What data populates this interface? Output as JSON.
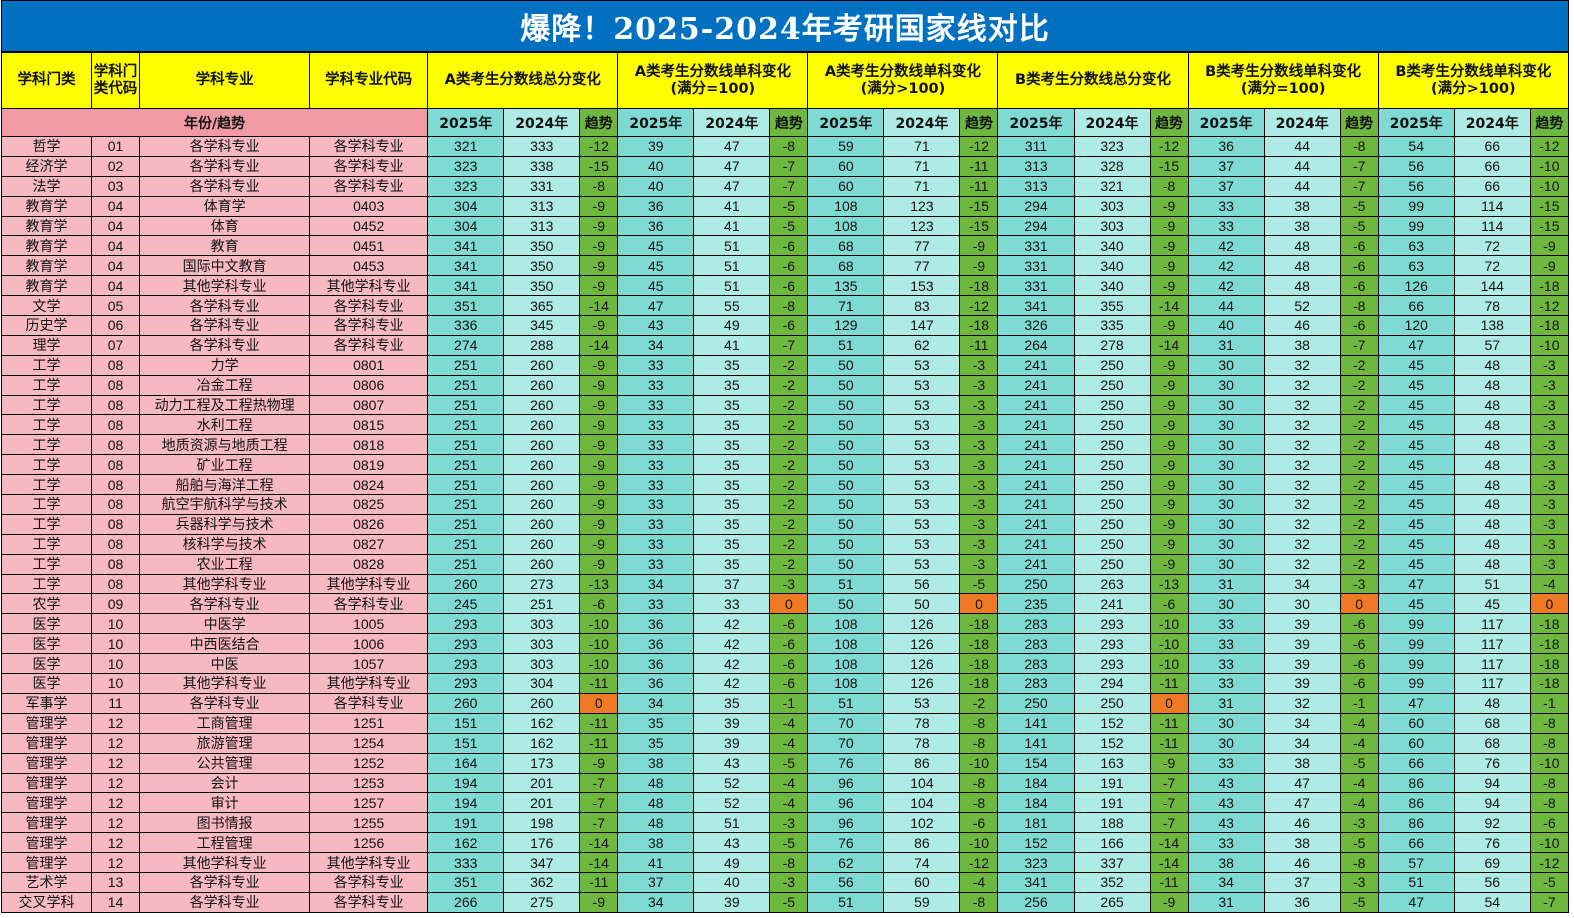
{
  "title": "爆降！2025-2024年考研国家线对比",
  "colors": {
    "title_bg": "#0070c0",
    "header_bg": "#ffff00",
    "label_bg": "#f7b9c1",
    "year2025_bg": "#7fdad3",
    "year2024_bg": "#aeebe5",
    "trend_bg": "#6fb83f",
    "zero_trend_bg": "#ef7a23"
  },
  "headers": {
    "category": "学科门类",
    "category_code": "学科门类代码",
    "major": "学科专业",
    "major_code": "学科专业代码",
    "groups": [
      {
        "line1": "A类考生分数线总分变化",
        "line2": ""
      },
      {
        "line1": "A类考生分数线单科变化",
        "line2": "(满分=100)"
      },
      {
        "line1": "A类考生分数线单科变化",
        "line2": "(满分>100)"
      },
      {
        "line1": "B类考生分数线总分变化",
        "line2": ""
      },
      {
        "line1": "B类考生分数线单科变化",
        "line2": "(满分=100)"
      },
      {
        "line1": "B类考生分数线单科变化",
        "line2": "(满分>100)"
      }
    ],
    "year_trend_label": "年份/趋势",
    "sub": [
      "2025年",
      "2024年",
      "趋势"
    ]
  },
  "rows": [
    [
      "哲学",
      "01",
      "各学科专业",
      "各学科专业",
      "321",
      "333",
      "-12",
      "39",
      "47",
      "-8",
      "59",
      "71",
      "-12",
      "311",
      "323",
      "-12",
      "36",
      "44",
      "-8",
      "54",
      "66",
      "-12"
    ],
    [
      "经济学",
      "02",
      "各学科专业",
      "各学科专业",
      "323",
      "338",
      "-15",
      "40",
      "47",
      "-7",
      "60",
      "71",
      "-11",
      "313",
      "328",
      "-15",
      "37",
      "44",
      "-7",
      "56",
      "66",
      "-10"
    ],
    [
      "法学",
      "03",
      "各学科专业",
      "各学科专业",
      "323",
      "331",
      "-8",
      "40",
      "47",
      "-7",
      "60",
      "71",
      "-11",
      "313",
      "321",
      "-8",
      "37",
      "44",
      "-7",
      "56",
      "66",
      "-10"
    ],
    [
      "教育学",
      "04",
      "体育学",
      "0403",
      "304",
      "313",
      "-9",
      "36",
      "41",
      "-5",
      "108",
      "123",
      "-15",
      "294",
      "303",
      "-9",
      "33",
      "38",
      "-5",
      "99",
      "114",
      "-15"
    ],
    [
      "教育学",
      "04",
      "体育",
      "0452",
      "304",
      "313",
      "-9",
      "36",
      "41",
      "-5",
      "108",
      "123",
      "-15",
      "294",
      "303",
      "-9",
      "33",
      "38",
      "-5",
      "99",
      "114",
      "-15"
    ],
    [
      "教育学",
      "04",
      "教育",
      "0451",
      "341",
      "350",
      "-9",
      "45",
      "51",
      "-6",
      "68",
      "77",
      "-9",
      "331",
      "340",
      "-9",
      "42",
      "48",
      "-6",
      "63",
      "72",
      "-9"
    ],
    [
      "教育学",
      "04",
      "国际中文教育",
      "0453",
      "341",
      "350",
      "-9",
      "45",
      "51",
      "-6",
      "68",
      "77",
      "-9",
      "331",
      "340",
      "-9",
      "42",
      "48",
      "-6",
      "63",
      "72",
      "-9"
    ],
    [
      "教育学",
      "04",
      "其他学科专业",
      "其他学科专业",
      "341",
      "350",
      "-9",
      "45",
      "51",
      "-6",
      "135",
      "153",
      "-18",
      "331",
      "340",
      "-9",
      "42",
      "48",
      "-6",
      "126",
      "144",
      "-18"
    ],
    [
      "文学",
      "05",
      "各学科专业",
      "各学科专业",
      "351",
      "365",
      "-14",
      "47",
      "55",
      "-8",
      "71",
      "83",
      "-12",
      "341",
      "355",
      "-14",
      "44",
      "52",
      "-8",
      "66",
      "78",
      "-12"
    ],
    [
      "历史学",
      "06",
      "各学科专业",
      "各学科专业",
      "336",
      "345",
      "-9",
      "43",
      "49",
      "-6",
      "129",
      "147",
      "-18",
      "326",
      "335",
      "-9",
      "40",
      "46",
      "-6",
      "120",
      "138",
      "-18"
    ],
    [
      "理学",
      "07",
      "各学科专业",
      "各学科专业",
      "274",
      "288",
      "-14",
      "34",
      "41",
      "-7",
      "51",
      "62",
      "-11",
      "264",
      "278",
      "-14",
      "31",
      "38",
      "-7",
      "47",
      "57",
      "-10"
    ],
    [
      "工学",
      "08",
      "力学",
      "0801",
      "251",
      "260",
      "-9",
      "33",
      "35",
      "-2",
      "50",
      "53",
      "-3",
      "241",
      "250",
      "-9",
      "30",
      "32",
      "-2",
      "45",
      "48",
      "-3"
    ],
    [
      "工学",
      "08",
      "冶金工程",
      "0806",
      "251",
      "260",
      "-9",
      "33",
      "35",
      "-2",
      "50",
      "53",
      "-3",
      "241",
      "250",
      "-9",
      "30",
      "32",
      "-2",
      "45",
      "48",
      "-3"
    ],
    [
      "工学",
      "08",
      "动力工程及工程热物理",
      "0807",
      "251",
      "260",
      "-9",
      "33",
      "35",
      "-2",
      "50",
      "53",
      "-3",
      "241",
      "250",
      "-9",
      "30",
      "32",
      "-2",
      "45",
      "48",
      "-3"
    ],
    [
      "工学",
      "08",
      "水利工程",
      "0815",
      "251",
      "260",
      "-9",
      "33",
      "35",
      "-2",
      "50",
      "53",
      "-3",
      "241",
      "250",
      "-9",
      "30",
      "32",
      "-2",
      "45",
      "48",
      "-3"
    ],
    [
      "工学",
      "08",
      "地质资源与地质工程",
      "0818",
      "251",
      "260",
      "-9",
      "33",
      "35",
      "-2",
      "50",
      "53",
      "-3",
      "241",
      "250",
      "-9",
      "30",
      "32",
      "-2",
      "45",
      "48",
      "-3"
    ],
    [
      "工学",
      "08",
      "矿业工程",
      "0819",
      "251",
      "260",
      "-9",
      "33",
      "35",
      "-2",
      "50",
      "53",
      "-3",
      "241",
      "250",
      "-9",
      "30",
      "32",
      "-2",
      "45",
      "48",
      "-3"
    ],
    [
      "工学",
      "08",
      "船舶与海洋工程",
      "0824",
      "251",
      "260",
      "-9",
      "33",
      "35",
      "-2",
      "50",
      "53",
      "-3",
      "241",
      "250",
      "-9",
      "30",
      "32",
      "-2",
      "45",
      "48",
      "-3"
    ],
    [
      "工学",
      "08",
      "航空宇航科学与技术",
      "0825",
      "251",
      "260",
      "-9",
      "33",
      "35",
      "-2",
      "50",
      "53",
      "-3",
      "241",
      "250",
      "-9",
      "30",
      "32",
      "-2",
      "45",
      "48",
      "-3"
    ],
    [
      "工学",
      "08",
      "兵器科学与技术",
      "0826",
      "251",
      "260",
      "-9",
      "33",
      "35",
      "-2",
      "50",
      "53",
      "-3",
      "241",
      "250",
      "-9",
      "30",
      "32",
      "-2",
      "45",
      "48",
      "-3"
    ],
    [
      "工学",
      "08",
      "核科学与技术",
      "0827",
      "251",
      "260",
      "-9",
      "33",
      "35",
      "-2",
      "50",
      "53",
      "-3",
      "241",
      "250",
      "-9",
      "30",
      "32",
      "-2",
      "45",
      "48",
      "-3"
    ],
    [
      "工学",
      "08",
      "农业工程",
      "0828",
      "251",
      "260",
      "-9",
      "33",
      "35",
      "-2",
      "50",
      "53",
      "-3",
      "241",
      "250",
      "-9",
      "30",
      "32",
      "-2",
      "45",
      "48",
      "-3"
    ],
    [
      "工学",
      "08",
      "其他学科专业",
      "其他学科专业",
      "260",
      "273",
      "-13",
      "34",
      "37",
      "-3",
      "51",
      "56",
      "-5",
      "250",
      "263",
      "-13",
      "31",
      "34",
      "-3",
      "47",
      "51",
      "-4"
    ],
    [
      "农学",
      "09",
      "各学科专业",
      "各学科专业",
      "245",
      "251",
      "-6",
      "33",
      "33",
      "0",
      "50",
      "50",
      "0",
      "235",
      "241",
      "-6",
      "30",
      "30",
      "0",
      "45",
      "45",
      "0"
    ],
    [
      "医学",
      "10",
      "中医学",
      "1005",
      "293",
      "303",
      "-10",
      "36",
      "42",
      "-6",
      "108",
      "126",
      "-18",
      "283",
      "293",
      "-10",
      "33",
      "39",
      "-6",
      "99",
      "117",
      "-18"
    ],
    [
      "医学",
      "10",
      "中西医结合",
      "1006",
      "293",
      "303",
      "-10",
      "36",
      "42",
      "-6",
      "108",
      "126",
      "-18",
      "283",
      "293",
      "-10",
      "33",
      "39",
      "-6",
      "99",
      "117",
      "-18"
    ],
    [
      "医学",
      "10",
      "中医",
      "1057",
      "293",
      "303",
      "-10",
      "36",
      "42",
      "-6",
      "108",
      "126",
      "-18",
      "283",
      "293",
      "-10",
      "33",
      "39",
      "-6",
      "99",
      "117",
      "-18"
    ],
    [
      "医学",
      "10",
      "其他学科专业",
      "其他学科专业",
      "293",
      "304",
      "-11",
      "36",
      "42",
      "-6",
      "108",
      "126",
      "-18",
      "283",
      "294",
      "-11",
      "33",
      "39",
      "-6",
      "99",
      "117",
      "-18"
    ],
    [
      "军事学",
      "11",
      "各学科专业",
      "各学科专业",
      "260",
      "260",
      "0",
      "34",
      "35",
      "-1",
      "51",
      "53",
      "-2",
      "250",
      "250",
      "0",
      "31",
      "32",
      "-1",
      "47",
      "48",
      "-1"
    ],
    [
      "管理学",
      "12",
      "工商管理",
      "1251",
      "151",
      "162",
      "-11",
      "35",
      "39",
      "-4",
      "70",
      "78",
      "-8",
      "141",
      "152",
      "-11",
      "30",
      "34",
      "-4",
      "60",
      "68",
      "-8"
    ],
    [
      "管理学",
      "12",
      "旅游管理",
      "1254",
      "151",
      "162",
      "-11",
      "35",
      "39",
      "-4",
      "70",
      "78",
      "-8",
      "141",
      "152",
      "-11",
      "30",
      "34",
      "-4",
      "60",
      "68",
      "-8"
    ],
    [
      "管理学",
      "12",
      "公共管理",
      "1252",
      "164",
      "173",
      "-9",
      "38",
      "43",
      "-5",
      "76",
      "86",
      "-10",
      "154",
      "163",
      "-9",
      "33",
      "38",
      "-5",
      "66",
      "76",
      "-10"
    ],
    [
      "管理学",
      "12",
      "会计",
      "1253",
      "194",
      "201",
      "-7",
      "48",
      "52",
      "-4",
      "96",
      "104",
      "-8",
      "184",
      "191",
      "-7",
      "43",
      "47",
      "-4",
      "86",
      "94",
      "-8"
    ],
    [
      "管理学",
      "12",
      "审计",
      "1257",
      "194",
      "201",
      "-7",
      "48",
      "52",
      "-4",
      "96",
      "104",
      "-8",
      "184",
      "191",
      "-7",
      "43",
      "47",
      "-4",
      "86",
      "94",
      "-8"
    ],
    [
      "管理学",
      "12",
      "图书情报",
      "1255",
      "191",
      "198",
      "-7",
      "48",
      "51",
      "-3",
      "96",
      "102",
      "-6",
      "181",
      "188",
      "-7",
      "43",
      "46",
      "-3",
      "86",
      "92",
      "-6"
    ],
    [
      "管理学",
      "12",
      "工程管理",
      "1256",
      "162",
      "176",
      "-14",
      "38",
      "43",
      "-5",
      "76",
      "86",
      "-10",
      "152",
      "166",
      "-14",
      "33",
      "38",
      "-5",
      "66",
      "76",
      "-10"
    ],
    [
      "管理学",
      "12",
      "其他学科专业",
      "其他学科专业",
      "333",
      "347",
      "-14",
      "41",
      "49",
      "-8",
      "62",
      "74",
      "-12",
      "323",
      "337",
      "-14",
      "38",
      "46",
      "-8",
      "57",
      "69",
      "-12"
    ],
    [
      "艺术学",
      "13",
      "各学科专业",
      "各学科专业",
      "351",
      "362",
      "-11",
      "37",
      "40",
      "-3",
      "56",
      "60",
      "-4",
      "341",
      "352",
      "-11",
      "34",
      "37",
      "-3",
      "51",
      "56",
      "-5"
    ],
    [
      "交叉学科",
      "14",
      "各学科专业",
      "各学科专业",
      "266",
      "275",
      "-9",
      "34",
      "39",
      "-5",
      "51",
      "59",
      "-8",
      "256",
      "265",
      "-9",
      "31",
      "36",
      "-5",
      "47",
      "54",
      "-7"
    ]
  ]
}
